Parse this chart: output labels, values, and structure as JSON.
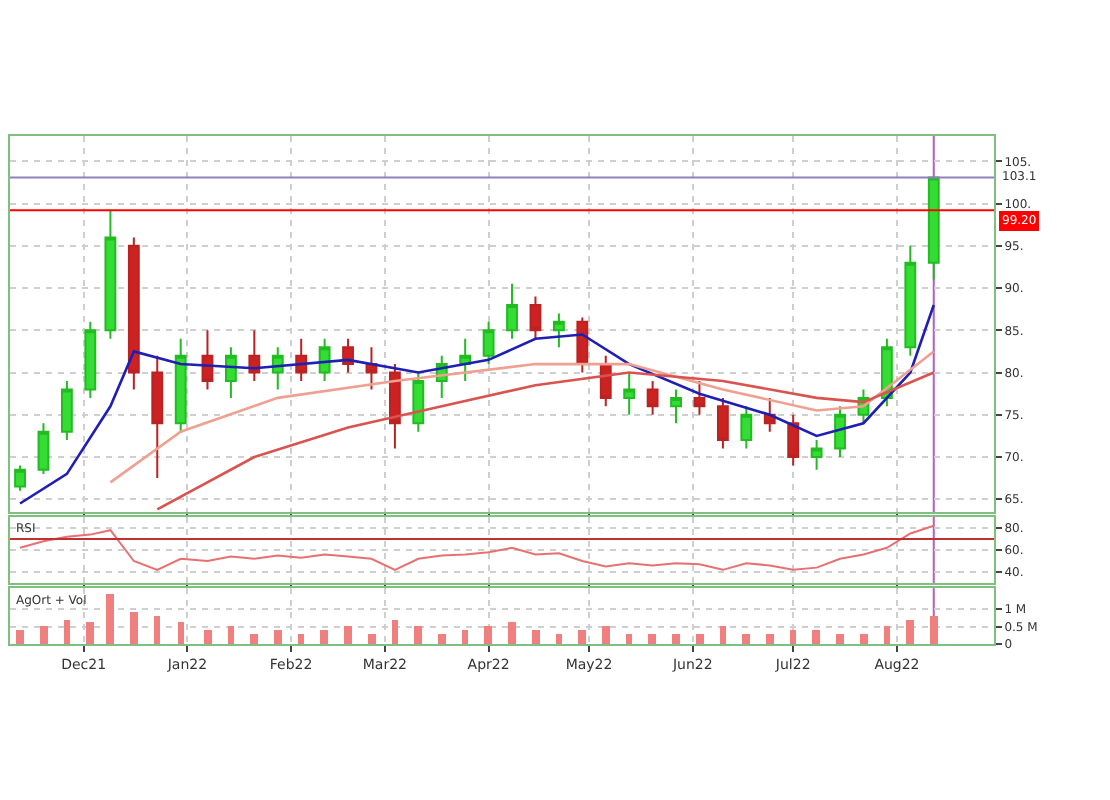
{
  "chart_data": [
    {
      "type": "candlestick",
      "x": [
        "2021-11-12",
        "2021-11-19",
        "2021-11-26",
        "2021-12-03",
        "2021-12-09",
        "2021-12-16",
        "2021-12-23",
        "2021-12-30",
        "2022-01-07",
        "2022-01-14",
        "2022-01-21",
        "2022-01-28",
        "2022-02-04",
        "2022-02-11",
        "2022-02-18",
        "2022-02-25",
        "2022-03-04",
        "2022-03-11",
        "2022-03-18",
        "2022-03-25",
        "2022-04-01",
        "2022-04-08",
        "2022-04-15",
        "2022-04-22",
        "2022-04-29",
        "2022-05-06",
        "2022-05-13",
        "2022-05-20",
        "2022-05-27",
        "2022-06-03",
        "2022-06-10",
        "2022-06-17",
        "2022-06-24",
        "2022-07-01",
        "2022-07-08",
        "2022-07-15",
        "2022-07-22",
        "2022-07-29",
        "2022-08-05",
        "2022-08-12"
      ],
      "ohlc": [
        [
          66.5,
          69,
          66,
          68.5
        ],
        [
          68.5,
          74,
          68,
          73
        ],
        [
          73,
          79,
          72,
          78
        ],
        [
          78,
          86,
          77,
          85
        ],
        [
          85,
          99.2,
          84,
          96
        ],
        [
          95,
          96,
          78,
          80
        ],
        [
          80,
          82,
          67.5,
          74
        ],
        [
          74,
          84,
          73,
          82
        ],
        [
          82,
          85,
          78,
          79
        ],
        [
          79,
          83,
          77,
          82
        ],
        [
          82,
          85,
          79,
          80
        ],
        [
          80,
          83,
          78,
          82
        ],
        [
          82,
          84,
          79,
          80
        ],
        [
          80,
          84,
          79,
          83
        ],
        [
          83,
          84,
          80,
          81
        ],
        [
          81,
          83,
          78,
          80
        ],
        [
          80,
          81,
          71,
          74
        ],
        [
          74,
          80,
          73,
          79
        ],
        [
          79,
          82,
          77,
          81
        ],
        [
          81,
          84,
          79,
          82
        ],
        [
          82,
          86,
          81,
          85
        ],
        [
          85,
          90.5,
          84,
          88
        ],
        [
          88,
          89,
          84,
          85
        ],
        [
          85,
          87,
          83,
          86
        ],
        [
          86,
          86.5,
          80,
          81
        ],
        [
          81,
          82,
          76,
          77
        ],
        [
          77,
          80,
          75,
          78
        ],
        [
          78,
          79,
          75,
          76
        ],
        [
          76,
          78,
          74,
          77
        ],
        [
          77,
          79,
          75,
          76
        ],
        [
          76,
          77,
          71,
          72
        ],
        [
          72,
          76,
          71,
          75
        ],
        [
          75,
          77,
          73,
          74
        ],
        [
          74,
          75,
          69,
          70
        ],
        [
          70,
          72,
          68.5,
          71
        ],
        [
          71,
          76,
          70,
          75
        ],
        [
          75,
          78,
          74,
          77
        ],
        [
          77,
          84,
          76,
          83
        ],
        [
          83,
          95,
          82,
          93
        ],
        [
          93,
          103.1,
          91,
          103.1
        ]
      ],
      "series": [
        {
          "type": "line",
          "color": "#1f1fb4",
          "x": [
            "2021-11-12",
            "2021-11-26",
            "2021-12-09",
            "2021-12-16",
            "2021-12-30",
            "2022-01-21",
            "2022-02-18",
            "2022-03-11",
            "2022-04-01",
            "2022-04-15",
            "2022-04-29",
            "2022-05-13",
            "2022-06-03",
            "2022-06-24",
            "2022-07-08",
            "2022-07-22",
            "2022-08-05",
            "2022-08-12"
          ],
          "values": [
            64.5,
            68,
            76,
            82.5,
            81,
            80.5,
            81.5,
            80,
            81.5,
            84,
            84.5,
            81,
            77.5,
            75,
            72.5,
            74,
            80,
            88
          ]
        },
        {
          "type": "line",
          "color": "#f0a090",
          "x": [
            "2021-12-09",
            "2021-12-30",
            "2022-01-28",
            "2022-03-04",
            "2022-04-15",
            "2022-05-13",
            "2022-06-10",
            "2022-07-08",
            "2022-07-22",
            "2022-08-12"
          ],
          "values": [
            67,
            73,
            77,
            79,
            81,
            81,
            78,
            75.5,
            76,
            82.5
          ]
        },
        {
          "type": "line",
          "color": "#d9534f",
          "x": [
            "2021-12-23",
            "2022-01-21",
            "2022-02-18",
            "2022-03-18",
            "2022-04-15",
            "2022-05-13",
            "2022-06-10",
            "2022-07-08",
            "2022-07-22",
            "2022-08-12"
          ],
          "values": [
            63.8,
            70,
            73.5,
            76,
            78.5,
            80,
            79,
            77,
            76.5,
            80
          ]
        }
      ],
      "xlim": [
        "2021-11-09",
        "2022-08-30"
      ],
      "xticks": [
        {
          "value": "2021-12-01",
          "label": null
        },
        {
          "value": "2022-01-01",
          "label": null
        },
        {
          "value": "2022-02-01",
          "label": null
        },
        {
          "value": "2022-03-01",
          "label": null
        },
        {
          "value": "2022-04-01",
          "label": null
        },
        {
          "value": "2022-05-01",
          "label": null
        },
        {
          "value": "2022-06-01",
          "label": null
        },
        {
          "value": "2022-07-01",
          "label": null
        },
        {
          "value": "2022-08-01",
          "label": null
        }
      ],
      "ylim": [
        63.5,
        108
      ],
      "yticks": [
        {
          "value": 65,
          "label": "65."
        },
        {
          "value": 70,
          "label": "70."
        },
        {
          "value": 75,
          "label": "75."
        },
        {
          "value": 80,
          "label": "80."
        },
        {
          "value": 85,
          "label": "85."
        },
        {
          "value": 90,
          "label": "90."
        },
        {
          "value": 95,
          "label": "95."
        },
        {
          "value": 100,
          "label": "100."
        },
        {
          "value": 105,
          "label": "105."
        }
      ],
      "ref_lines": [
        {
          "axis": "y",
          "value": 99.2,
          "label": "99.20",
          "color": "#ff0000"
        },
        {
          "axis": "y",
          "value": 103.1,
          "label": "103.1",
          "color": "#9080c0"
        },
        {
          "axis": "x",
          "value": "2022-08-12",
          "color": "#b060c0"
        }
      ],
      "grid": true,
      "tick_labels": "y"
    },
    {
      "type": "line",
      "title": "RSI",
      "x": [
        "2021-11-12",
        "2021-11-19",
        "2021-11-26",
        "2021-12-03",
        "2021-12-09",
        "2021-12-16",
        "2021-12-23",
        "2021-12-30",
        "2022-01-07",
        "2022-01-14",
        "2022-01-21",
        "2022-01-28",
        "2022-02-04",
        "2022-02-11",
        "2022-02-18",
        "2022-02-25",
        "2022-03-04",
        "2022-03-11",
        "2022-03-18",
        "2022-03-25",
        "2022-04-01",
        "2022-04-08",
        "2022-04-15",
        "2022-04-22",
        "2022-04-29",
        "2022-05-06",
        "2022-05-13",
        "2022-05-20",
        "2022-05-27",
        "2022-06-03",
        "2022-06-10",
        "2022-06-17",
        "2022-06-24",
        "2022-07-01",
        "2022-07-08",
        "2022-07-15",
        "2022-07-22",
        "2022-07-29",
        "2022-08-05",
        "2022-08-12"
      ],
      "series": [
        {
          "color": "#e87070",
          "values": [
            62,
            68,
            72,
            74,
            78,
            50,
            42,
            52,
            50,
            54,
            52,
            55,
            53,
            56,
            54,
            52,
            42,
            52,
            55,
            56,
            58,
            62,
            56,
            57,
            50,
            45,
            48,
            46,
            48,
            47,
            42,
            48,
            46,
            42,
            44,
            52,
            56,
            62,
            75,
            82
          ]
        }
      ],
      "xlim": [
        "2021-11-09",
        "2022-08-30"
      ],
      "xticks": [
        {
          "value": "2021-12-01",
          "label": null
        },
        {
          "value": "2022-01-01",
          "label": null
        },
        {
          "value": "2022-02-01",
          "label": null
        },
        {
          "value": "2022-03-01",
          "label": null
        },
        {
          "value": "2022-04-01",
          "label": null
        },
        {
          "value": "2022-05-01",
          "label": null
        },
        {
          "value": "2022-06-01",
          "label": null
        },
        {
          "value": "2022-07-01",
          "label": null
        },
        {
          "value": "2022-08-01",
          "label": null
        }
      ],
      "ylim": [
        30,
        90
      ],
      "yticks": [
        {
          "value": 40,
          "label": "40."
        },
        {
          "value": 60,
          "label": "60."
        },
        {
          "value": 80,
          "label": "80."
        }
      ],
      "ref_lines": [
        {
          "axis": "y",
          "value": 70,
          "color": "#c03030"
        },
        {
          "axis": "x",
          "value": "2022-08-12",
          "color": "#b060c0"
        }
      ],
      "grid": true,
      "tick_labels": "y"
    },
    {
      "type": "bar",
      "title": "AgOrt + Vol",
      "x": [
        "2021-11-12",
        "2021-11-19",
        "2021-11-26",
        "2021-12-03",
        "2021-12-09",
        "2021-12-16",
        "2021-12-23",
        "2021-12-30",
        "2022-01-07",
        "2022-01-14",
        "2022-01-21",
        "2022-01-28",
        "2022-02-04",
        "2022-02-11",
        "2022-02-18",
        "2022-02-25",
        "2022-03-04",
        "2022-03-11",
        "2022-03-18",
        "2022-03-25",
        "2022-04-01",
        "2022-04-08",
        "2022-04-15",
        "2022-04-22",
        "2022-04-29",
        "2022-05-06",
        "2022-05-13",
        "2022-05-20",
        "2022-05-27",
        "2022-06-03",
        "2022-06-10",
        "2022-06-17",
        "2022-06-24",
        "2022-07-01",
        "2022-07-08",
        "2022-07-15",
        "2022-07-22",
        "2022-07-29",
        "2022-08-05",
        "2022-08-12"
      ],
      "series": [
        {
          "color": "#f08080",
          "values": [
            0.4,
            0.5,
            0.7,
            0.6,
            1.4,
            0.9,
            0.8,
            0.6,
            0.4,
            0.5,
            0.3,
            0.4,
            0.3,
            0.4,
            0.5,
            0.3,
            0.7,
            0.5,
            0.3,
            0.4,
            0.5,
            0.6,
            0.4,
            0.3,
            0.4,
            0.5,
            0.3,
            0.3,
            0.3,
            0.3,
            0.5,
            0.3,
            0.3,
            0.4,
            0.4,
            0.3,
            0.3,
            0.5,
            0.7,
            0.8
          ]
        }
      ],
      "xlim": [
        "2021-11-09",
        "2022-08-30"
      ],
      "xticks": [
        {
          "value": "2021-12-01",
          "label": "Dec21"
        },
        {
          "value": "2022-01-01",
          "label": "Jan22"
        },
        {
          "value": "2022-02-01",
          "label": "Feb22"
        },
        {
          "value": "2022-03-01",
          "label": "Mar22"
        },
        {
          "value": "2022-04-01",
          "label": "Apr22"
        },
        {
          "value": "2022-05-01",
          "label": "May22"
        },
        {
          "value": "2022-06-01",
          "label": "Jun22"
        },
        {
          "value": "2022-07-01",
          "label": "Jul22"
        },
        {
          "value": "2022-08-01",
          "label": "Aug22"
        }
      ],
      "ylim": [
        0,
        1.6
      ],
      "yticks": [
        {
          "value": 0,
          "label": "0"
        },
        {
          "value": 0.5,
          "label": "0.5 M"
        },
        {
          "value": 1,
          "label": "1 M"
        }
      ],
      "ref_lines": [
        {
          "axis": "x",
          "value": "2022-08-12",
          "color": "#b060c0"
        }
      ],
      "grid": true
    }
  ]
}
